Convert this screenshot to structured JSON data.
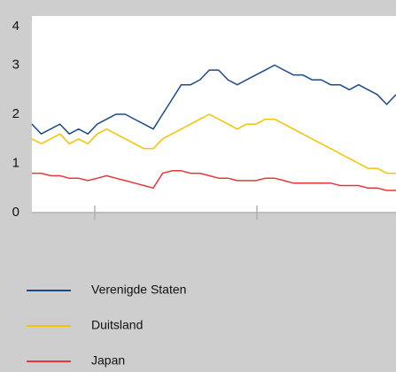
{
  "chart_data": {
    "type": "line",
    "series": [
      {
        "name": "Verenigde Staten",
        "color": "#1a4b8c",
        "values": [
          1.8,
          1.6,
          1.7,
          1.8,
          1.6,
          1.7,
          1.6,
          1.8,
          1.9,
          2.0,
          2.0,
          1.9,
          1.8,
          1.7,
          2.0,
          2.3,
          2.6,
          2.6,
          2.7,
          2.9,
          2.9,
          2.7,
          2.6,
          2.7,
          2.8,
          2.9,
          3.0,
          2.9,
          2.8,
          2.8,
          2.7,
          2.7,
          2.6,
          2.6,
          2.5,
          2.6,
          2.5,
          2.4,
          2.2,
          2.4
        ]
      },
      {
        "name": "Duitsland",
        "color": "#f5c400",
        "values": [
          1.5,
          1.4,
          1.5,
          1.6,
          1.4,
          1.5,
          1.4,
          1.6,
          1.7,
          1.6,
          1.5,
          1.4,
          1.3,
          1.3,
          1.5,
          1.6,
          1.7,
          1.8,
          1.9,
          2.0,
          1.9,
          1.8,
          1.7,
          1.8,
          1.8,
          1.9,
          1.9,
          1.8,
          1.7,
          1.6,
          1.5,
          1.4,
          1.3,
          1.2,
          1.1,
          1.0,
          0.9,
          0.9,
          0.8,
          0.8
        ]
      },
      {
        "name": "Japan",
        "color": "#e8373a",
        "values": [
          0.8,
          0.8,
          0.75,
          0.75,
          0.7,
          0.7,
          0.65,
          0.7,
          0.75,
          0.7,
          0.65,
          0.6,
          0.55,
          0.5,
          0.8,
          0.85,
          0.85,
          0.8,
          0.8,
          0.75,
          0.7,
          0.7,
          0.65,
          0.65,
          0.65,
          0.7,
          0.7,
          0.65,
          0.6,
          0.6,
          0.6,
          0.6,
          0.6,
          0.55,
          0.55,
          0.55,
          0.5,
          0.5,
          0.45,
          0.45
        ]
      }
    ],
    "ylim": [
      0,
      4
    ],
    "yticks": [
      0,
      1,
      2,
      3,
      4
    ],
    "grid": false
  }
}
